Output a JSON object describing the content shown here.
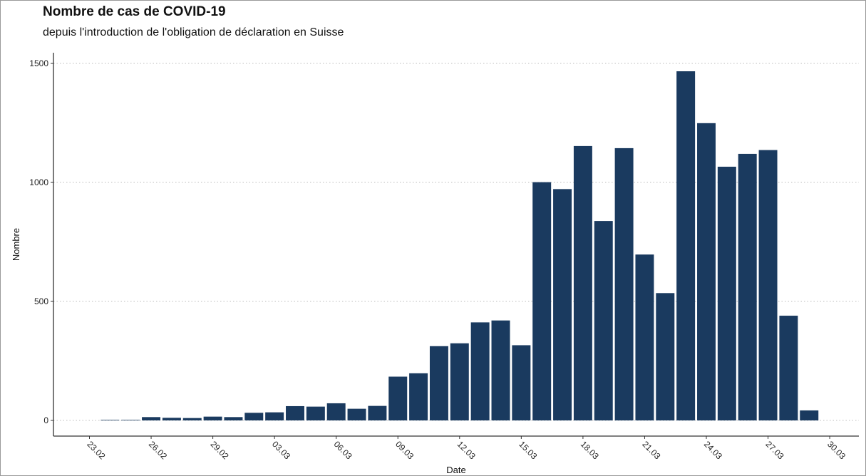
{
  "title": "Nombre de cas de COVID-19",
  "subtitle": "depuis l'introduction de l'obligation de déclaration en Suisse",
  "colors": {
    "bar": "#1a3a5f",
    "grid": "#bdbdbd",
    "axis": "#333333"
  },
  "chart_data": {
    "type": "bar",
    "title": "Nombre de cas de COVID-19",
    "subtitle": "depuis l'introduction de l'obligation de déclaration en Suisse",
    "xlabel": "Date",
    "ylabel": "Nombre",
    "ylim": [
      -65,
      1500
    ],
    "yticks": [
      0,
      500,
      1000,
      1500
    ],
    "xticks": [
      "23.02",
      "26.02",
      "29.02",
      "03.03",
      "06.03",
      "09.03",
      "12.03",
      "15.03",
      "18.03",
      "21.03",
      "24.03",
      "27.03",
      "30.03"
    ],
    "grid": "horizontal dotted",
    "categories": [
      "24.02",
      "25.02",
      "26.02",
      "27.02",
      "28.02",
      "29.02",
      "01.03",
      "02.03",
      "03.03",
      "04.03",
      "05.03",
      "06.03",
      "07.03",
      "08.03",
      "09.03",
      "10.03",
      "11.03",
      "12.03",
      "13.03",
      "14.03",
      "15.03",
      "16.03",
      "17.03",
      "18.03",
      "19.03",
      "20.03",
      "21.03",
      "22.03",
      "23.03",
      "24.03",
      "25.03",
      "26.03",
      "27.03",
      "28.03",
      "29.03"
    ],
    "values": [
      1,
      0,
      14,
      11,
      10,
      16,
      14,
      32,
      34,
      60,
      58,
      72,
      49,
      61,
      184,
      198,
      312,
      324,
      412,
      420,
      316,
      1001,
      972,
      1153,
      838,
      1144,
      697,
      535,
      1467,
      1249,
      1066,
      1120,
      1136,
      440,
      42
    ]
  }
}
